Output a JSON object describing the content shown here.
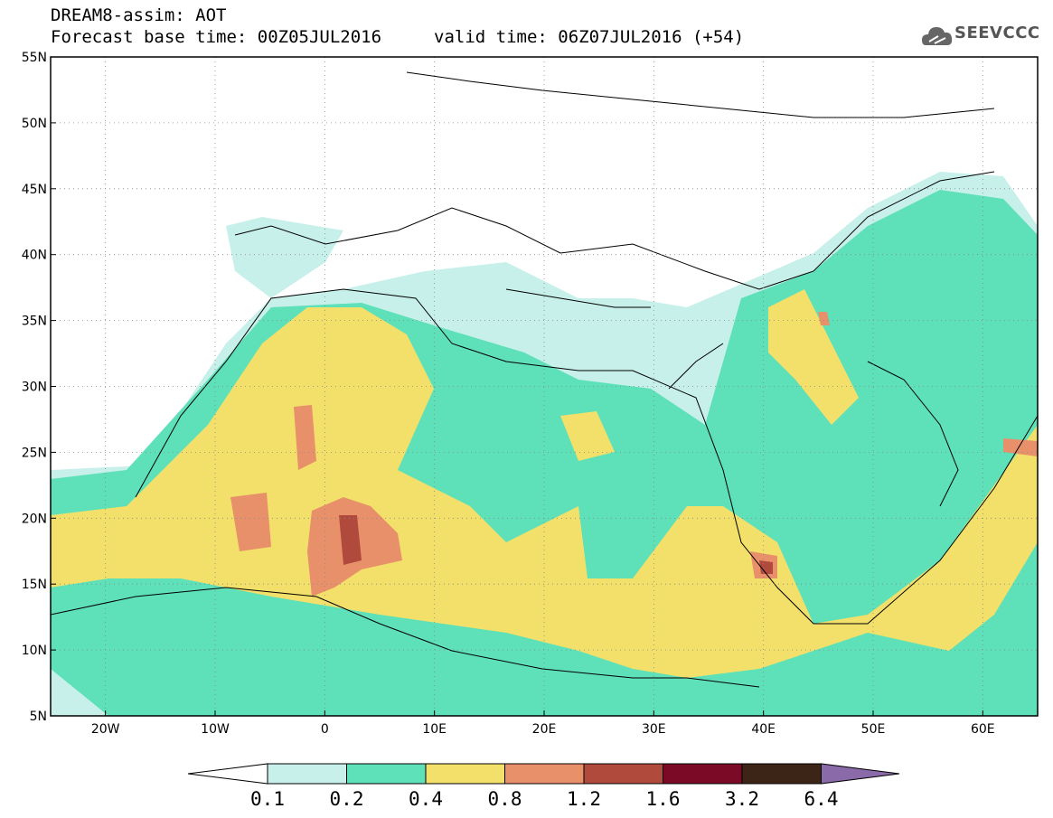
{
  "header": {
    "title": "DREAM8-assim: AOT",
    "base_time": "Forecast base time: 00Z05JUL2016",
    "valid_time": "valid time: 06Z07JUL2016 (+54)"
  },
  "logo": {
    "text": "SEEVCCC",
    "icon": "cloud-logo-icon"
  },
  "map": {
    "lon_range": [
      -25,
      65
    ],
    "lat_range": [
      5,
      55
    ],
    "lat_ticks": [
      "5N",
      "10N",
      "15N",
      "20N",
      "25N",
      "30N",
      "35N",
      "40N",
      "45N",
      "50N",
      "55N"
    ],
    "lon_ticks": [
      "20W",
      "10W",
      "0",
      "10E",
      "20E",
      "30E",
      "40E",
      "50E",
      "60E"
    ]
  },
  "colorbar": {
    "labels": [
      "0.1",
      "0.2",
      "0.4",
      "0.8",
      "1.2",
      "1.6",
      "3.2",
      "6.4"
    ],
    "colors": [
      "#c8f0ea",
      "#5ee0b8",
      "#f2e06a",
      "#e8906a",
      "#b04a3c",
      "#7a0a26",
      "#3c2416"
    ],
    "under_color": "#ffffff",
    "over_color": "#8a6aa8"
  }
}
